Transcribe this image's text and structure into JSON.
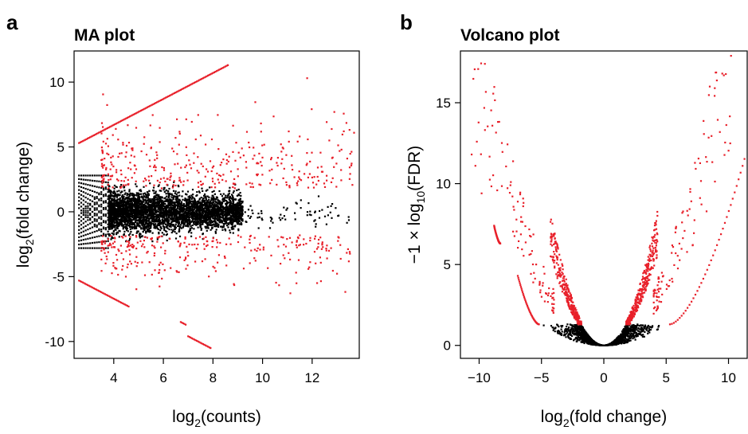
{
  "chart_data": [
    {
      "panel": "a",
      "type": "scatter",
      "title": "MA plot",
      "xlabel": {
        "base": "log",
        "sub": "2",
        "rest": "(counts)"
      },
      "ylabel": {
        "base": "log",
        "sub": "2",
        "rest": "(fold change)"
      },
      "xlim": [
        2.4,
        13.9
      ],
      "ylim": [
        -11.3,
        12.4
      ],
      "xticks": [
        4,
        6,
        8,
        10,
        12
      ],
      "yticks": [
        -10,
        -5,
        0,
        5,
        10
      ],
      "grid": false,
      "legend": "none",
      "colors": {
        "not_significant": "#000000",
        "significant": "#e8202a"
      },
      "series": [
        {
          "status": "not_significant",
          "regions": [
            {
              "x_range": [
                3.8,
                9.2
              ],
              "y_center": 0,
              "y_spread": 1.35,
              "n": 3800
            },
            {
              "x_range": [
                9.2,
                13.5
              ],
              "y_center": -0.2,
              "y_spread": 0.9,
              "n": 70
            }
          ],
          "bands": {
            "x_range": [
              2.6,
              3.8
            ],
            "note": "discrete low-count streaks within |y|<3"
          }
        },
        {
          "status": "significant",
          "lines": [
            {
              "x_start": 2.6,
              "y_start": 5.3,
              "slope": 1.0,
              "x_end": 8.6
            },
            {
              "x_start": 2.6,
              "y_start": -5.3,
              "slope": -1.0,
              "x_end": 4.6
            },
            {
              "x_start": 6.7,
              "y_start": -8.5,
              "slope": -1.0,
              "x_end": 6.9
            },
            {
              "x_start": 7.0,
              "y_start": -9.6,
              "slope": -1.0,
              "x_end": 7.9
            }
          ],
          "scatter": {
            "x_range": [
              3.5,
              13.7
            ],
            "y_range": [
              -8,
              10.5
            ],
            "min_abs_y": 1.8,
            "n": 650
          },
          "extremes": [
            [
              8.6,
              11.3
            ],
            [
              11.8,
              10.3
            ],
            [
              7.9,
              -10.5
            ],
            [
              12.2,
              -5.5
            ]
          ]
        }
      ]
    },
    {
      "panel": "b",
      "type": "scatter",
      "title": "Volcano plot",
      "xlabel": {
        "base": "log",
        "sub": "2",
        "rest": "(fold change)"
      },
      "ylabel": {
        "pre": "−1 × log",
        "sub": "10",
        "rest": "(FDR)"
      },
      "xlim": [
        -11.5,
        11.5
      ],
      "ylim": [
        -0.8,
        18.2
      ],
      "xticks": [
        -10,
        -5,
        0,
        5,
        10
      ],
      "xtick_labels": [
        "−10",
        "−5",
        "0",
        "5",
        "10"
      ],
      "yticks": [
        0,
        5,
        10,
        15
      ],
      "grid": false,
      "legend": "none",
      "colors": {
        "not_significant": "#000000",
        "significant": "#e8202a"
      },
      "series": [
        {
          "status": "not_significant",
          "shape": "parabola",
          "y_formula": "y = k * x^2",
          "k_range": [
            0.05,
            0.4
          ],
          "y_max": 1.3,
          "n": 1500
        },
        {
          "status": "significant",
          "inner_arms": {
            "x_abs_range": [
              1.8,
              4.3
            ],
            "k_range": [
              0.3,
              0.45
            ],
            "n": 700
          },
          "outer_arms": {
            "x_abs_range": [
              4.0,
              10.5
            ],
            "k_range": [
              0.12,
              0.22
            ],
            "n": 220
          },
          "curves": [
            {
              "x_start": -6.9,
              "x_end": -5.2,
              "y_start": 4.3,
              "y_end": 1.3
            },
            {
              "x_start": 5.3,
              "x_end": 11.6,
              "y_start": 1.3,
              "y_end": 12.4
            },
            {
              "x_start": -8.8,
              "x_end": -8.3,
              "y_start": 7.4,
              "y_end": 6.3
            }
          ],
          "extremes": [
            [
              -10.6,
              11.8
            ],
            [
              -10.3,
              11.1
            ],
            [
              -9.8,
              9.4
            ],
            [
              10.2,
              17.9
            ],
            [
              9.5,
              16.8
            ],
            [
              8.9,
              15.9
            ],
            [
              8.5,
              16.0
            ]
          ]
        }
      ]
    }
  ]
}
